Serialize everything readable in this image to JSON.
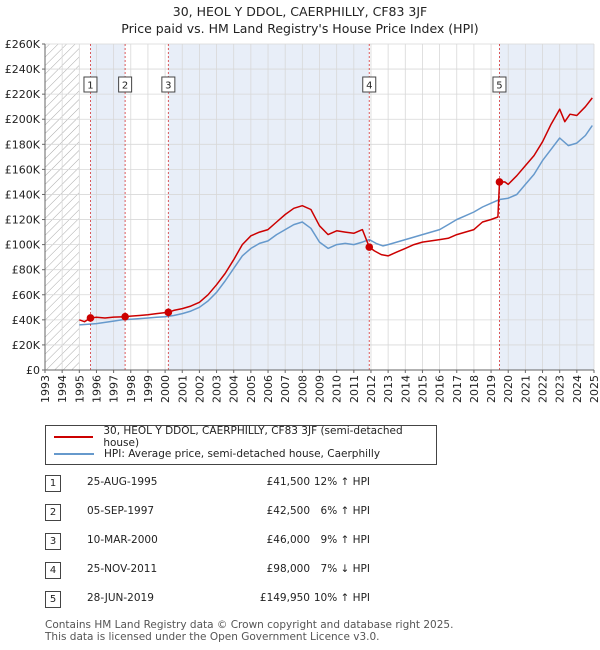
{
  "title": "30, HEOL Y DDOL, CAERPHILLY, CF83 3JF",
  "subtitle": "Price paid vs. HM Land Registry's House Price Index (HPI)",
  "colors": {
    "property": "#cc0000",
    "hpi": "#6699cc",
    "shade": "#e8eef8",
    "hatch": "#999999"
  },
  "chart_data": {
    "type": "line",
    "title": "30, HEOL Y DDOL, CAERPHILLY, CF83 3JF",
    "subtitle": "Price paid vs. HM Land Registry's House Price Index (HPI)",
    "xlim": [
      1993,
      2025
    ],
    "ylim": [
      0,
      260000
    ],
    "hatched_until": 1995.0,
    "shaded_periods": [
      [
        1995.65,
        1997.67
      ],
      [
        2000.19,
        2011.9
      ],
      [
        2019.49,
        2025
      ]
    ],
    "x_ticks": [
      "1993",
      "1994",
      "1995",
      "1996",
      "1997",
      "1998",
      "1999",
      "2000",
      "2001",
      "2002",
      "2003",
      "2004",
      "2005",
      "2006",
      "2007",
      "2008",
      "2009",
      "2010",
      "2011",
      "2012",
      "2013",
      "2014",
      "2015",
      "2016",
      "2017",
      "2018",
      "2019",
      "2020",
      "2021",
      "2022",
      "2023",
      "2024",
      "2025"
    ],
    "y_ticks": [
      {
        "value": 0,
        "label": "£0"
      },
      {
        "value": 20000,
        "label": "£20K"
      },
      {
        "value": 40000,
        "label": "£40K"
      },
      {
        "value": 60000,
        "label": "£60K"
      },
      {
        "value": 80000,
        "label": "£80K"
      },
      {
        "value": 100000,
        "label": "£100K"
      },
      {
        "value": 120000,
        "label": "£120K"
      },
      {
        "value": 140000,
        "label": "£140K"
      },
      {
        "value": 160000,
        "label": "£160K"
      },
      {
        "value": 180000,
        "label": "£180K"
      },
      {
        "value": 200000,
        "label": "£200K"
      },
      {
        "value": 220000,
        "label": "£220K"
      },
      {
        "value": 240000,
        "label": "£240K"
      },
      {
        "value": 260000,
        "label": "£260K"
      }
    ],
    "sales": [
      {
        "n": "1",
        "x": 1995.65,
        "price": 41500
      },
      {
        "n": "2",
        "x": 1997.67,
        "price": 42500
      },
      {
        "n": "3",
        "x": 2000.19,
        "price": 46000
      },
      {
        "n": "4",
        "x": 2011.9,
        "price": 98000
      },
      {
        "n": "5",
        "x": 2019.49,
        "price": 149950
      }
    ],
    "series": [
      {
        "name": "30, HEOL Y DDOL, CAERPHILLY, CF83 3JF (semi-detached house)",
        "color": "#cc0000",
        "points": [
          [
            1995.0,
            40000
          ],
          [
            1995.3,
            38500
          ],
          [
            1995.65,
            41500
          ],
          [
            1996.0,
            42000
          ],
          [
            1996.5,
            41500
          ],
          [
            1997.0,
            42200
          ],
          [
            1997.67,
            42500
          ],
          [
            1998.0,
            43000
          ],
          [
            1998.5,
            43500
          ],
          [
            1999.0,
            44000
          ],
          [
            1999.5,
            45000
          ],
          [
            2000.19,
            46000
          ],
          [
            2000.5,
            47500
          ],
          [
            2001.0,
            49000
          ],
          [
            2001.5,
            51000
          ],
          [
            2002.0,
            54000
          ],
          [
            2002.5,
            60000
          ],
          [
            2003.0,
            68000
          ],
          [
            2003.5,
            77000
          ],
          [
            2004.0,
            88000
          ],
          [
            2004.5,
            100000
          ],
          [
            2005.0,
            107000
          ],
          [
            2005.5,
            110000
          ],
          [
            2006.0,
            112000
          ],
          [
            2006.5,
            118000
          ],
          [
            2007.0,
            124000
          ],
          [
            2007.5,
            129000
          ],
          [
            2008.0,
            131000
          ],
          [
            2008.5,
            128000
          ],
          [
            2009.0,
            115000
          ],
          [
            2009.5,
            108000
          ],
          [
            2010.0,
            111000
          ],
          [
            2010.5,
            110000
          ],
          [
            2011.0,
            109000
          ],
          [
            2011.5,
            112000
          ],
          [
            2011.9,
            98000
          ],
          [
            2012.2,
            95000
          ],
          [
            2012.6,
            92000
          ],
          [
            2013.0,
            91000
          ],
          [
            2013.5,
            94000
          ],
          [
            2014.0,
            97000
          ],
          [
            2014.5,
            100000
          ],
          [
            2015.0,
            102000
          ],
          [
            2015.5,
            103000
          ],
          [
            2016.0,
            104000
          ],
          [
            2016.5,
            105000
          ],
          [
            2017.0,
            108000
          ],
          [
            2017.5,
            110000
          ],
          [
            2018.0,
            112000
          ],
          [
            2018.5,
            118000
          ],
          [
            2019.0,
            120000
          ],
          [
            2019.4,
            122000
          ],
          [
            2019.49,
            149950
          ],
          [
            2019.8,
            150000
          ],
          [
            2020.0,
            148000
          ],
          [
            2020.5,
            155000
          ],
          [
            2021.0,
            163000
          ],
          [
            2021.5,
            171000
          ],
          [
            2022.0,
            182000
          ],
          [
            2022.5,
            196000
          ],
          [
            2023.0,
            208000
          ],
          [
            2023.3,
            198000
          ],
          [
            2023.6,
            204000
          ],
          [
            2024.0,
            203000
          ],
          [
            2024.5,
            210000
          ],
          [
            2024.9,
            217000
          ]
        ]
      },
      {
        "name": "HPI: Average price, semi-detached house, Caerphilly",
        "color": "#6699cc",
        "points": [
          [
            1995.0,
            36000
          ],
          [
            1995.5,
            36500
          ],
          [
            1996.0,
            37000
          ],
          [
            1996.5,
            38000
          ],
          [
            1997.0,
            39000
          ],
          [
            1997.5,
            40000
          ],
          [
            1998.0,
            40500
          ],
          [
            1998.5,
            41000
          ],
          [
            1999.0,
            41500
          ],
          [
            1999.5,
            42000
          ],
          [
            2000.0,
            42500
          ],
          [
            2000.5,
            43500
          ],
          [
            2001.0,
            45000
          ],
          [
            2001.5,
            47000
          ],
          [
            2002.0,
            50000
          ],
          [
            2002.5,
            55000
          ],
          [
            2003.0,
            62000
          ],
          [
            2003.5,
            71000
          ],
          [
            2004.0,
            81000
          ],
          [
            2004.5,
            91000
          ],
          [
            2005.0,
            97000
          ],
          [
            2005.5,
            101000
          ],
          [
            2006.0,
            103000
          ],
          [
            2006.5,
            108000
          ],
          [
            2007.0,
            112000
          ],
          [
            2007.5,
            116000
          ],
          [
            2008.0,
            118000
          ],
          [
            2008.5,
            113000
          ],
          [
            2009.0,
            102000
          ],
          [
            2009.5,
            97000
          ],
          [
            2010.0,
            100000
          ],
          [
            2010.5,
            101000
          ],
          [
            2011.0,
            100000
          ],
          [
            2011.5,
            102000
          ],
          [
            2011.9,
            104000
          ],
          [
            2012.3,
            101000
          ],
          [
            2012.7,
            99000
          ],
          [
            2013.0,
            100000
          ],
          [
            2013.5,
            102000
          ],
          [
            2014.0,
            104000
          ],
          [
            2014.5,
            106000
          ],
          [
            2015.0,
            108000
          ],
          [
            2015.5,
            110000
          ],
          [
            2016.0,
            112000
          ],
          [
            2016.5,
            116000
          ],
          [
            2017.0,
            120000
          ],
          [
            2017.5,
            123000
          ],
          [
            2018.0,
            126000
          ],
          [
            2018.5,
            130000
          ],
          [
            2019.0,
            133000
          ],
          [
            2019.5,
            136000
          ],
          [
            2020.0,
            137000
          ],
          [
            2020.5,
            140000
          ],
          [
            2021.0,
            148000
          ],
          [
            2021.5,
            156000
          ],
          [
            2022.0,
            167000
          ],
          [
            2022.5,
            176000
          ],
          [
            2023.0,
            185000
          ],
          [
            2023.5,
            179000
          ],
          [
            2024.0,
            181000
          ],
          [
            2024.5,
            187000
          ],
          [
            2024.9,
            195000
          ]
        ]
      }
    ]
  },
  "legend": {
    "property_label": "30, HEOL Y DDOL, CAERPHILLY, CF83 3JF (semi-detached house)",
    "hpi_label": "HPI: Average price, semi-detached house, Caerphilly"
  },
  "transactions": [
    {
      "n": "1",
      "date": "25-AUG-1995",
      "price": "£41,500",
      "hpi": "12% ↑ HPI"
    },
    {
      "n": "2",
      "date": "05-SEP-1997",
      "price": "£42,500",
      "hpi": "6% ↑ HPI"
    },
    {
      "n": "3",
      "date": "10-MAR-2000",
      "price": "£46,000",
      "hpi": "9% ↑ HPI"
    },
    {
      "n": "4",
      "date": "25-NOV-2011",
      "price": "£98,000",
      "hpi": "7% ↓ HPI"
    },
    {
      "n": "5",
      "date": "28-JUN-2019",
      "price": "£149,950",
      "hpi": "10% ↑ HPI"
    }
  ],
  "footer": {
    "line1": "Contains HM Land Registry data © Crown copyright and database right 2025.",
    "line2": "This data is licensed under the Open Government Licence v3.0."
  }
}
